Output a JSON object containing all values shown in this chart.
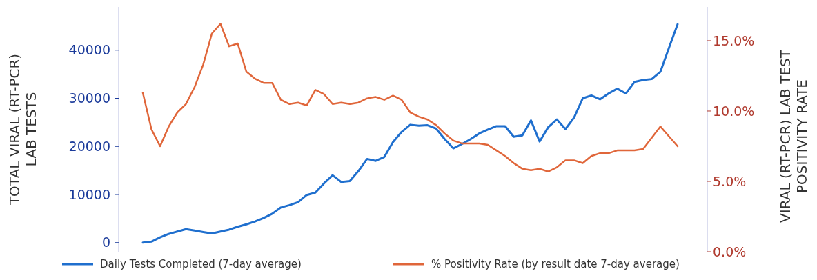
{
  "chart_data": {
    "type": "line",
    "ylabel": "TOTAL VIRAL (RT-PCR)\nLAB TESTS",
    "y2label": "VIRAL (RT-PCR) LAB TEST\nPOSITIVITY RATE",
    "categories": [
      null,
      null,
      null,
      null,
      null,
      null,
      null,
      null,
      null,
      null,
      null,
      null,
      null,
      null,
      null,
      null,
      null,
      null,
      null,
      null,
      null,
      null,
      null,
      null,
      null,
      null,
      null,
      null,
      null,
      null,
      null,
      null,
      null,
      null,
      null,
      null,
      null,
      null,
      null,
      null,
      null,
      null,
      null,
      null,
      null,
      null,
      null,
      null,
      null,
      null,
      null,
      null,
      null,
      null,
      null,
      null,
      null,
      null,
      null,
      null,
      null,
      null,
      null
    ],
    "series": [
      {
        "name": "Daily Tests Completed (7-day average)",
        "color": "#1f6fce",
        "values": [
          0,
          200,
          1100,
          1800,
          2300,
          2800,
          2500,
          2200,
          1900,
          2300,
          2700,
          3300,
          3800,
          4400,
          5100,
          6000,
          7300,
          7800,
          8400,
          9900,
          10400,
          12300,
          14000,
          12600,
          12800,
          14900,
          17400,
          17000,
          17800,
          20900,
          23000,
          24500,
          24300,
          24400,
          23700,
          21500,
          19600,
          20500,
          21500,
          22700,
          23500,
          24200,
          24200,
          22000,
          22300,
          25400,
          21000,
          24000,
          25600,
          23600,
          26000,
          30000,
          30600,
          29800,
          31000,
          32000,
          31000,
          33400,
          33800,
          34000,
          35500,
          40500,
          45400
        ]
      },
      {
        "name": "% Positivity Rate (by result date 7-day average)",
        "color": "#e0663a",
        "axis": "y2",
        "values": [
          11.3,
          8.7,
          7.5,
          8.9,
          9.9,
          10.5,
          11.7,
          13.3,
          15.5,
          16.2,
          14.6,
          14.8,
          12.8,
          12.3,
          12.0,
          12.0,
          10.8,
          10.5,
          10.6,
          10.4,
          11.5,
          11.2,
          10.5,
          10.6,
          10.5,
          10.6,
          10.9,
          11.0,
          10.8,
          11.1,
          10.8,
          9.9,
          9.6,
          9.4,
          9.0,
          8.4,
          7.9,
          7.7,
          7.7,
          7.7,
          7.6,
          7.2,
          6.8,
          6.3,
          5.9,
          5.8,
          5.9,
          5.7,
          6.0,
          6.5,
          6.5,
          6.3,
          6.8,
          7.0,
          7.0,
          7.2,
          7.2,
          7.2,
          7.3,
          8.1,
          8.9,
          8.2,
          7.5
        ]
      }
    ],
    "ylim": [
      -1900,
      49000
    ],
    "yticks": [
      0,
      10000,
      20000,
      30000,
      40000
    ],
    "y2lim": [
      0,
      17.4
    ],
    "y2ticks": [
      {
        "value": 0,
        "label": "0.0%"
      },
      {
        "value": 5,
        "label": "5.0%"
      },
      {
        "value": 10,
        "label": "10.0%"
      },
      {
        "value": 15,
        "label": "15.0%"
      }
    ],
    "tick_labels": "y",
    "grid": false,
    "legend": "bottom",
    "line_style": "solid",
    "marker": "none"
  }
}
